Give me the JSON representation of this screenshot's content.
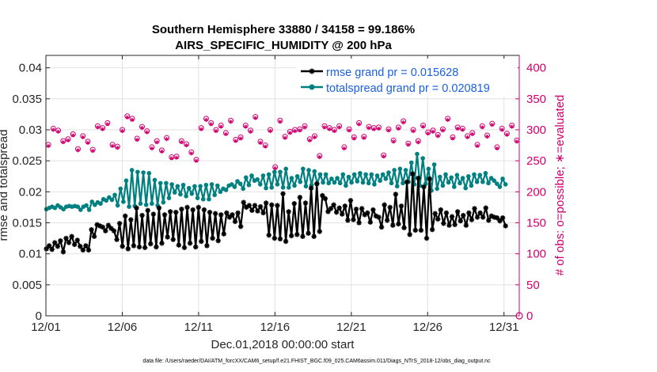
{
  "chart_data": {
    "type": "line",
    "title": "Southern Hemisphere 33880 / 34158 = 99.186%",
    "subtitle": "AIRS_SPECIFIC_HUMIDITY @ 200 hPa",
    "xlabel": "Dec.01,2018 00:00:00 start",
    "ylabel": "rmse and totalspread",
    "y2label": "# of obs: o=possible; ∗=evaluated",
    "footnote": "data file: /Users/raeder/DAI/ATM_forcXX/CAM6_setup/f.e21.FHIST_BGC.f09_025.CAM6assim.011/Diags_NTrS_2018-12/obs_diag_output.nc",
    "xlim": [
      1,
      32
    ],
    "ylim": [
      0,
      0.042
    ],
    "y2lim": [
      0,
      420
    ],
    "x_ticks": [
      1,
      6,
      11,
      16,
      21,
      26,
      31
    ],
    "x_tick_labels": [
      "12/01",
      "12/06",
      "12/11",
      "12/16",
      "12/21",
      "12/26",
      "12/31"
    ],
    "y_ticks": [
      0,
      0.005,
      0.01,
      0.015,
      0.02,
      0.025,
      0.03,
      0.035,
      0.04
    ],
    "y_tick_labels": [
      "0",
      "0.005",
      "0.01",
      "0.015",
      "0.02",
      "0.025",
      "0.03",
      "0.035",
      "0.04"
    ],
    "y2_ticks": [
      0,
      50,
      100,
      150,
      200,
      250,
      300,
      350,
      400
    ],
    "y2_tick_labels": [
      "0",
      "50",
      "100",
      "150",
      "200",
      "250",
      "300",
      "350",
      "400"
    ],
    "grid": true,
    "legend_position": "top-right",
    "series": [
      {
        "name": "rmse grand pr = 0.015628",
        "color": "#000000",
        "marker": "asterisk",
        "values": [
          0.0108,
          0.0113,
          0.0107,
          0.0118,
          0.0112,
          0.0121,
          0.0103,
          0.0125,
          0.0118,
          0.0128,
          0.0115,
          0.0122,
          0.0112,
          0.0106,
          0.0113,
          0.0106,
          0.0139,
          0.0128,
          0.0147,
          0.0145,
          0.0143,
          0.0137,
          0.0146,
          0.0141,
          0.0137,
          0.0123,
          0.0149,
          0.0112,
          0.0161,
          0.0108,
          0.0155,
          0.0113,
          0.0174,
          0.0111,
          0.0162,
          0.011,
          0.017,
          0.0116,
          0.0164,
          0.0111,
          0.0174,
          0.0117,
          0.0163,
          0.0127,
          0.0168,
          0.0123,
          0.0167,
          0.0114,
          0.0172,
          0.011,
          0.0175,
          0.0117,
          0.0171,
          0.0111,
          0.0175,
          0.012,
          0.0171,
          0.0113,
          0.0167,
          0.0125,
          0.0165,
          0.0121,
          0.0163,
          0.0132,
          0.0166,
          0.0159,
          0.0163,
          0.0152,
          0.0166,
          0.0144,
          0.0183,
          0.0175,
          0.0178,
          0.017,
          0.0178,
          0.0169,
          0.0176,
          0.0166,
          0.0182,
          0.013,
          0.0179,
          0.0125,
          0.0178,
          0.0124,
          0.0197,
          0.012,
          0.0168,
          0.0129,
          0.0181,
          0.0131,
          0.0191,
          0.0128,
          0.0182,
          0.0133,
          0.0206,
          0.0128,
          0.0213,
          0.0136,
          0.0194,
          0.0189,
          0.0168,
          0.0173,
          0.0179,
          0.0167,
          0.0174,
          0.0164,
          0.0177,
          0.0154,
          0.0186,
          0.0155,
          0.0172,
          0.015,
          0.0173,
          0.0163,
          0.0166,
          0.0151,
          0.0171,
          0.0161,
          0.0159,
          0.0143,
          0.0179,
          0.0154,
          0.0175,
          0.0146,
          0.0196,
          0.0148,
          0.0177,
          0.0142,
          0.0216,
          0.0131,
          0.0229,
          0.0138,
          0.0222,
          0.0138,
          0.0208,
          0.0125,
          0.0221,
          0.0139,
          0.0165,
          0.0156,
          0.0171,
          0.0149,
          0.0166,
          0.0146,
          0.016,
          0.0147,
          0.0168,
          0.0153,
          0.0162,
          0.0146,
          0.0166,
          0.0155,
          0.0173,
          0.0159,
          0.0166,
          0.0159,
          0.0174,
          0.0154,
          0.0161,
          0.0159,
          0.0158,
          0.0153,
          0.0158,
          0.0145
        ]
      },
      {
        "name": "totalspread grand pr = 0.020819",
        "color": "#008080",
        "marker": "dot",
        "values": [
          0.0172,
          0.0174,
          0.0176,
          0.0174,
          0.0178,
          0.0175,
          0.0172,
          0.0176,
          0.0177,
          0.0176,
          0.0177,
          0.0176,
          0.0171,
          0.0176,
          0.0178,
          0.0171,
          0.0184,
          0.0179,
          0.0183,
          0.0181,
          0.0188,
          0.0186,
          0.0191,
          0.0187,
          0.0195,
          0.0178,
          0.0205,
          0.0184,
          0.0218,
          0.0176,
          0.0235,
          0.0177,
          0.0232,
          0.0181,
          0.0231,
          0.0179,
          0.023,
          0.0181,
          0.0219,
          0.0178,
          0.0214,
          0.0183,
          0.0214,
          0.019,
          0.0212,
          0.0199,
          0.0209,
          0.0196,
          0.0211,
          0.0193,
          0.0206,
          0.0197,
          0.0209,
          0.019,
          0.0209,
          0.0188,
          0.0211,
          0.0188,
          0.0212,
          0.0195,
          0.021,
          0.02,
          0.0205,
          0.0203,
          0.021,
          0.0212,
          0.0208,
          0.0217,
          0.0213,
          0.0205,
          0.0223,
          0.0211,
          0.0226,
          0.0218,
          0.022,
          0.0212,
          0.0226,
          0.0206,
          0.0228,
          0.0207,
          0.0232,
          0.0212,
          0.0232,
          0.0207,
          0.0237,
          0.0207,
          0.0222,
          0.021,
          0.0225,
          0.0216,
          0.0237,
          0.0209,
          0.0235,
          0.0211,
          0.0233,
          0.0213,
          0.0228,
          0.0215,
          0.0228,
          0.0214,
          0.0221,
          0.0215,
          0.0222,
          0.0214,
          0.0228,
          0.021,
          0.0224,
          0.0215,
          0.0228,
          0.0217,
          0.023,
          0.0215,
          0.0228,
          0.0214,
          0.0228,
          0.0212,
          0.0226,
          0.0218,
          0.0228,
          0.0221,
          0.0231,
          0.0214,
          0.0235,
          0.0209,
          0.0237,
          0.0214,
          0.0235,
          0.0216,
          0.0247,
          0.0212,
          0.0261,
          0.021,
          0.0254,
          0.0213,
          0.0237,
          0.0202,
          0.0244,
          0.0205,
          0.0224,
          0.021,
          0.0228,
          0.0215,
          0.0223,
          0.0208,
          0.0227,
          0.0214,
          0.0222,
          0.0206,
          0.0225,
          0.021,
          0.0228,
          0.0216,
          0.0227,
          0.0216,
          0.023,
          0.0214,
          0.0222,
          0.0218,
          0.0213,
          0.0208,
          0.0221,
          0.0212
        ]
      },
      {
        "name": "possible",
        "axis": "right",
        "color": "#d0006f",
        "marker": "circle",
        "values": [
          276,
          302,
          299,
          282,
          285,
          293,
          269,
          290,
          281,
          268,
          306,
          303,
          311,
          276,
          273,
          300,
          322,
          318,
          286,
          305,
          298,
          272,
          282,
          267,
          287,
          256,
          257,
          282,
          277,
          264,
          252,
          303,
          318,
          311,
          300,
          307,
          295,
          315,
          284,
          288,
          307,
          299,
          321,
          281,
          275,
          300,
          240,
          315,
          289,
          297,
          300,
          301,
          306,
          285,
          290,
          258,
          306,
          303,
          300,
          306,
          272,
          301,
          288,
          311,
          289,
          305,
          303,
          304,
          259,
          301,
          283,
          304,
          314,
          278,
          300,
          282,
          307,
          296,
          299,
          292,
          301,
          318,
          288,
          304,
          302,
          290,
          295,
          276,
          306,
          291,
          310,
          272,
          302,
          294,
          307,
          283
        ]
      },
      {
        "name": "evaluated",
        "axis": "right",
        "color": "#d0006f",
        "marker": "asterisk",
        "values": [
          274,
          300,
          297,
          280,
          283,
          291,
          267,
          288,
          279,
          266,
          304,
          301,
          309,
          274,
          271,
          298,
          320,
          316,
          284,
          303,
          296,
          270,
          280,
          265,
          285,
          254,
          255,
          280,
          275,
          262,
          250,
          301,
          316,
          309,
          298,
          305,
          293,
          313,
          282,
          286,
          305,
          297,
          319,
          279,
          273,
          298,
          238,
          313,
          287,
          295,
          298,
          299,
          304,
          283,
          288,
          256,
          304,
          301,
          298,
          304,
          270,
          299,
          286,
          309,
          287,
          303,
          301,
          302,
          257,
          299,
          281,
          302,
          312,
          276,
          298,
          280,
          305,
          294,
          297,
          290,
          299,
          316,
          286,
          302,
          300,
          288,
          293,
          274,
          304,
          289,
          308,
          270,
          300,
          292,
          305,
          281
        ]
      }
    ],
    "count_row_values": [
      0
    ]
  }
}
